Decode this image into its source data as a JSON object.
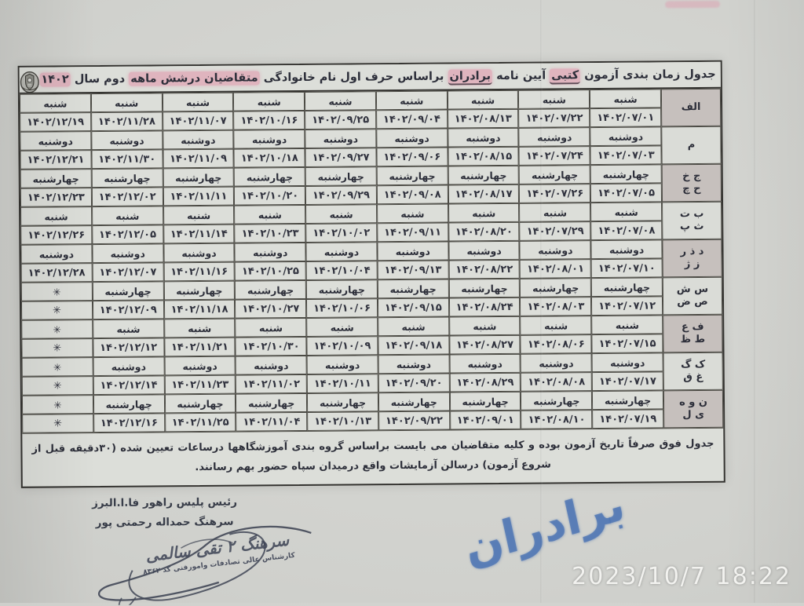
{
  "photo": {
    "camera_timestamp": "2023/10/7 18:22",
    "blue_handwriting": "برادران"
  },
  "document": {
    "title_parts": [
      {
        "text": "جدول زمان بندی آزمون "
      },
      {
        "text": "کتبی",
        "highlight": true,
        "underline": true
      },
      {
        "text": " آیین نامه "
      },
      {
        "text": "برادران",
        "highlight": true,
        "underline": true
      },
      {
        "text": " براساس حرف اول نام خانوادگی "
      },
      {
        "text": "متقاضیان درشش ماهه",
        "highlight": true
      },
      {
        "text": " دوم سال "
      },
      {
        "text": "۱۴۰۲",
        "highlight": true
      }
    ],
    "emblem_icon": "police-crest-icon",
    "schedule": {
      "star_symbol": "✳",
      "groups": [
        {
          "letters": [
            "الف"
          ],
          "day": "شنبه",
          "dates": [
            "۱۴۰۲/۰۷/۰۱",
            "۱۴۰۲/۰۷/۲۲",
            "۱۴۰۲/۰۸/۱۳",
            "۱۴۰۲/۰۹/۰۴",
            "۱۴۰۲/۰۹/۲۵",
            "۱۴۰۲/۱۰/۱۶",
            "۱۴۰۲/۱۱/۰۷",
            "۱۴۰۲/۱۱/۲۸",
            "۱۴۰۲/۱۲/۱۹"
          ]
        },
        {
          "letters": [
            "م"
          ],
          "day": "دوشنبه",
          "dates": [
            "۱۴۰۲/۰۷/۰۳",
            "۱۴۰۲/۰۷/۲۴",
            "۱۴۰۲/۰۸/۱۵",
            "۱۴۰۲/۰۹/۰۶",
            "۱۴۰۲/۰۹/۲۷",
            "۱۴۰۲/۱۰/۱۸",
            "۱۴۰۲/۱۱/۰۹",
            "۱۴۰۲/۱۱/۳۰",
            "۱۴۰۲/۱۲/۲۱"
          ]
        },
        {
          "letters": [
            "ج خ",
            "ح چ"
          ],
          "day": "چهارشنبه",
          "dates": [
            "۱۴۰۲/۰۷/۰۵",
            "۱۴۰۲/۰۷/۲۶",
            "۱۴۰۲/۰۸/۱۷",
            "۱۴۰۲/۰۹/۰۸",
            "۱۴۰۲/۰۹/۲۹",
            "۱۴۰۲/۱۰/۲۰",
            "۱۴۰۲/۱۱/۱۱",
            "۱۴۰۲/۱۲/۰۲",
            "۱۴۰۲/۱۲/۲۳"
          ]
        },
        {
          "letters": [
            "ب ت",
            "ث پ"
          ],
          "day": "شنبه",
          "dates": [
            "۱۴۰۲/۰۷/۰۸",
            "۱۴۰۲/۰۷/۲۹",
            "۱۴۰۲/۰۸/۲۰",
            "۱۴۰۲/۰۹/۱۱",
            "۱۴۰۲/۱۰/۰۲",
            "۱۴۰۲/۱۰/۲۳",
            "۱۴۰۲/۱۱/۱۴",
            "۱۴۰۲/۱۲/۰۵",
            "۱۴۰۲/۱۲/۲۶"
          ]
        },
        {
          "letters": [
            "د ذ ر",
            "ز ژ"
          ],
          "day": "دوشنبه",
          "dates": [
            "۱۴۰۲/۰۷/۱۰",
            "۱۴۰۲/۰۸/۰۱",
            "۱۴۰۲/۰۸/۲۲",
            "۱۴۰۲/۰۹/۱۳",
            "۱۴۰۲/۱۰/۰۴",
            "۱۴۰۲/۱۰/۲۵",
            "۱۴۰۲/۱۱/۱۶",
            "۱۴۰۲/۱۲/۰۷",
            "۱۴۰۲/۱۲/۲۸"
          ]
        },
        {
          "letters": [
            "س ش",
            "ص ض"
          ],
          "day": "چهارشنبه",
          "dates": [
            "۱۴۰۲/۰۷/۱۲",
            "۱۴۰۲/۰۸/۰۳",
            "۱۴۰۲/۰۸/۲۴",
            "۱۴۰۲/۰۹/۱۵",
            "۱۴۰۲/۱۰/۰۶",
            "۱۴۰۲/۱۰/۲۷",
            "۱۴۰۲/۱۱/۱۸",
            "۱۴۰۲/۱۲/۰۹",
            "✳"
          ]
        },
        {
          "letters": [
            "ف ع",
            "ط ظ"
          ],
          "day": "شنبه",
          "dates": [
            "۱۴۰۲/۰۷/۱۵",
            "۱۴۰۲/۰۸/۰۶",
            "۱۴۰۲/۰۸/۲۷",
            "۱۴۰۲/۰۹/۱۸",
            "۱۴۰۲/۱۰/۰۹",
            "۱۴۰۲/۱۰/۳۰",
            "۱۴۰۲/۱۱/۲۱",
            "۱۴۰۲/۱۲/۱۲",
            "✳"
          ]
        },
        {
          "letters": [
            "ک گ",
            "غ ق"
          ],
          "day": "دوشنبه",
          "dates": [
            "۱۴۰۲/۰۷/۱۷",
            "۱۴۰۲/۰۸/۰۸",
            "۱۴۰۲/۰۸/۲۹",
            "۱۴۰۲/۰۹/۲۰",
            "۱۴۰۲/۱۰/۱۱",
            "۱۴۰۲/۱۱/۰۲",
            "۱۴۰۲/۱۱/۲۳",
            "۱۴۰۲/۱۲/۱۴",
            "✳"
          ]
        },
        {
          "letters": [
            "ن و ه",
            "ی ل"
          ],
          "day": "چهارشنبه",
          "dates": [
            "۱۴۰۲/۰۷/۱۹",
            "۱۴۰۲/۰۸/۱۰",
            "۱۴۰۲/۰۹/۰۱",
            "۱۴۰۲/۰۹/۲۲",
            "۱۴۰۲/۱۰/۱۳",
            "۱۴۰۲/۱۱/۰۴",
            "۱۴۰۲/۱۱/۲۵",
            "۱۴۰۲/۱۲/۱۶",
            "✳"
          ]
        }
      ]
    },
    "note": "جدول فوق صرفاً تاریخ آزمون بوده و کلیه متقاضیان می بایست براساس گروه بندی آموزشگاهها درساعات تعیین شده (۳۰دقیقه قبل از شروع آزمون) درسالن آزمایشات واقع درمیدان سپاه حضور بهم رسانند."
  },
  "signature": {
    "line1": "رئیس پلیس راهور فا.ا.البرز",
    "line2": "سرهنگ حمداله رحمتی پور",
    "stamp_name": "سرهنگ ۲ تقی سالمی",
    "stamp_detail": "کارشناس عالی تصادفات وامورفنی کد ۸۳۶۲"
  },
  "colors": {
    "paper": "#d0d1cd",
    "cell": "#dcded9",
    "shaded_letter_cell": "#c6c0bd",
    "grid_border": "#4b4a44",
    "ink": "#2d2f3a",
    "highlight_pink": "#e28aa4",
    "marker_blue": "#4d74b4",
    "timestamp_white": "#f2f2ef"
  }
}
